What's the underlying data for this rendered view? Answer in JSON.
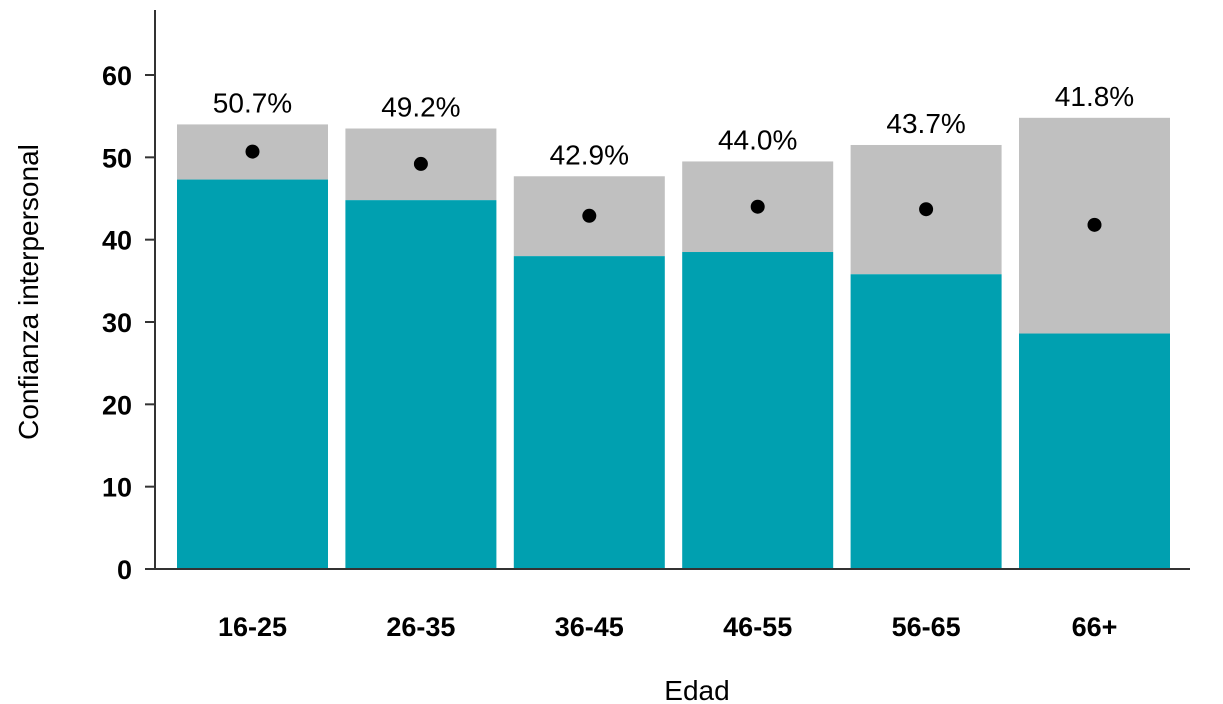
{
  "chart_data": {
    "type": "bar",
    "xlabel": "Edad",
    "ylabel": "Confianza interpersonal",
    "ylim": [
      0,
      66
    ],
    "yticks": [
      0,
      10,
      20,
      30,
      40,
      50,
      60
    ],
    "categories": [
      "16-25",
      "26-35",
      "36-45",
      "46-55",
      "56-65",
      "66+"
    ],
    "series": [
      {
        "values": [
          47.3,
          44.8,
          38.0,
          38.5,
          35.8,
          28.6
        ]
      },
      {
        "values": [
          54.0,
          53.5,
          47.7,
          49.5,
          51.5,
          54.8
        ]
      }
    ],
    "point_values": [
      50.7,
      49.2,
      42.9,
      44.0,
      43.7,
      41.8
    ],
    "data_labels": [
      "50.7%",
      "49.2%",
      "42.9%",
      "44.0%",
      "43.7%",
      "41.8%"
    ],
    "grid": false,
    "colors": {
      "lower": "#00a0b0",
      "upper": "#c0c0c0",
      "point": "#000000",
      "axis": "#333333"
    }
  }
}
